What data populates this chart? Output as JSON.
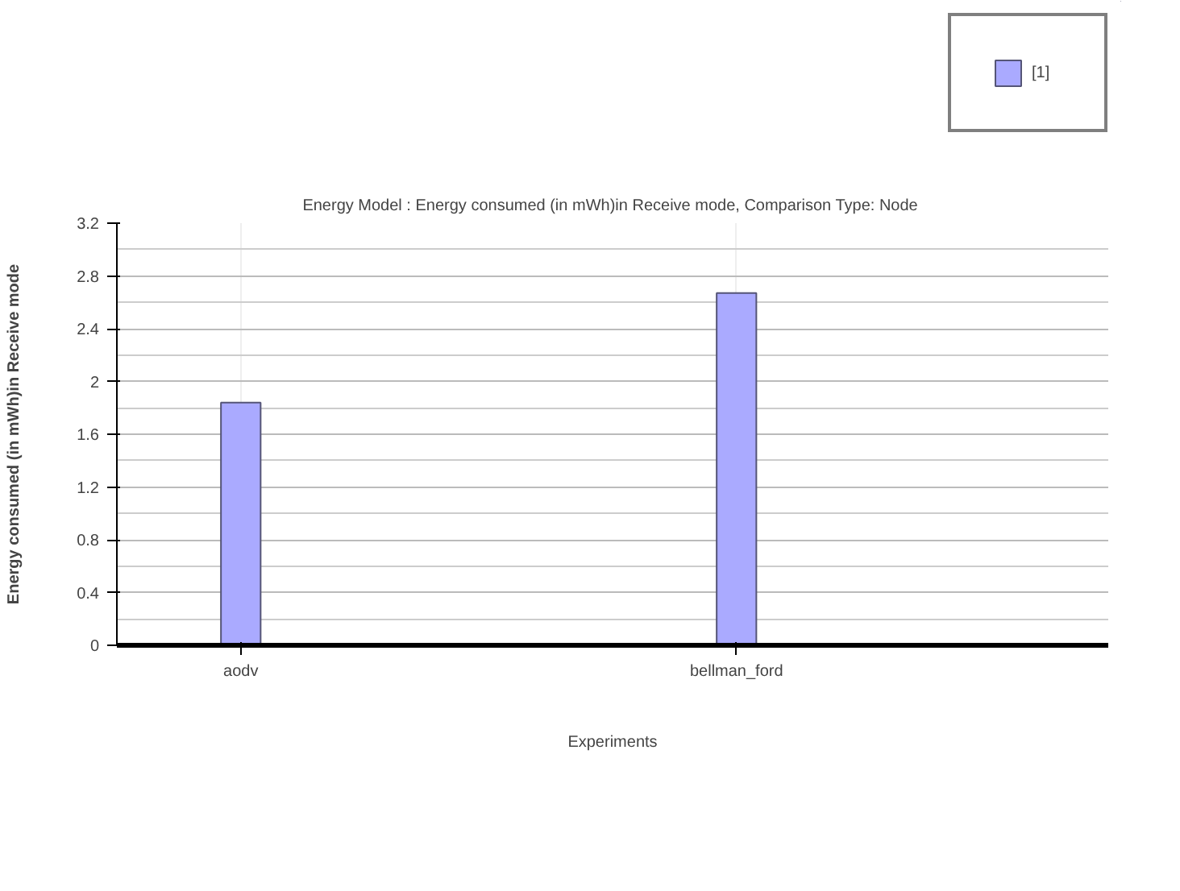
{
  "chart_data": {
    "type": "bar",
    "title": "Energy Model :  Energy consumed (in mWh)in Receive mode, Comparison Type: Node",
    "xlabel": "Experiments",
    "ylabel": "Energy consumed (in mWh)in Receive mode",
    "categories": [
      "aodv",
      "bellman_ford"
    ],
    "series": [
      {
        "name": "[1]",
        "color": "#aaaaff",
        "values": [
          1.84,
          2.67
        ]
      }
    ],
    "ylim": [
      0,
      3.2
    ],
    "yticks": [
      0,
      0.4,
      0.8,
      1.2,
      1.6,
      2,
      2.4,
      2.8,
      3.2
    ],
    "grid": true,
    "legend": "top right"
  }
}
